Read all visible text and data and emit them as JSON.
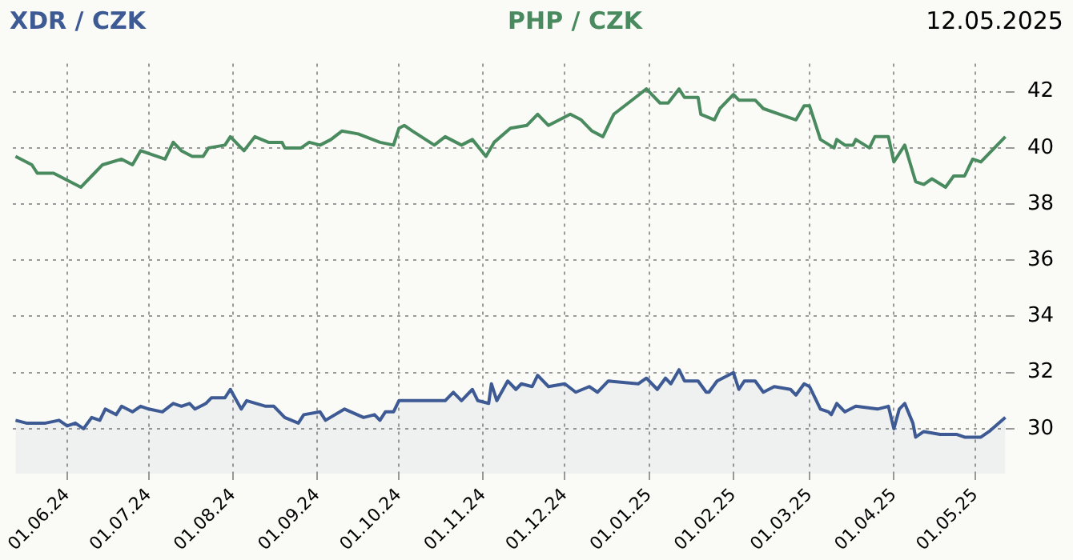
{
  "chart_data": {
    "type": "line",
    "annotations": [
      "12.05.2025"
    ],
    "xlim": [
      "2024-05-12",
      "2025-05-13"
    ],
    "xticks": [
      {
        "value": "2024-06-01",
        "label": "01.06.24"
      },
      {
        "value": "2024-07-01",
        "label": "01.07.24"
      },
      {
        "value": "2024-08-01",
        "label": "01.08.24"
      },
      {
        "value": "2024-09-01",
        "label": "01.09.24"
      },
      {
        "value": "2024-10-01",
        "label": "01.10.24"
      },
      {
        "value": "2024-11-01",
        "label": "01.11.24"
      },
      {
        "value": "2024-12-01",
        "label": "01.12.24"
      },
      {
        "value": "2025-01-01",
        "label": "01.01.25"
      },
      {
        "value": "2025-02-01",
        "label": "01.02.25"
      },
      {
        "value": "2025-03-01",
        "label": "01.03.25"
      },
      {
        "value": "2025-04-01",
        "label": "01.04.25"
      },
      {
        "value": "2025-05-01",
        "label": "01.05.25"
      }
    ],
    "ylim": [
      28.4,
      43
    ],
    "yticks": [
      30,
      32,
      34,
      36,
      38,
      40,
      42
    ],
    "grid": true,
    "marker": "none",
    "line_style": "solid",
    "series": [
      {
        "name": "XDR / CZK",
        "type": "area",
        "color": "#3d5a94",
        "x": [
          "2024-05-13",
          "2024-05-17",
          "2024-05-24",
          "2024-05-29",
          "2024-06-01",
          "2024-06-04",
          "2024-06-07",
          "2024-06-10",
          "2024-06-13",
          "2024-06-15",
          "2024-06-19",
          "2024-06-21",
          "2024-06-25",
          "2024-06-28",
          "2024-07-01",
          "2024-07-06",
          "2024-07-10",
          "2024-07-13",
          "2024-07-16",
          "2024-07-18",
          "2024-07-22",
          "2024-07-24",
          "2024-07-29",
          "2024-07-31",
          "2024-08-04",
          "2024-08-06",
          "2024-08-13",
          "2024-08-16",
          "2024-08-20",
          "2024-08-25",
          "2024-08-27",
          "2024-09-02",
          "2024-09-04",
          "2024-09-11",
          "2024-09-18",
          "2024-09-22",
          "2024-09-24",
          "2024-09-26",
          "2024-09-29",
          "2024-10-01",
          "2024-10-06",
          "2024-10-09",
          "2024-10-18",
          "2024-10-21",
          "2024-10-24",
          "2024-10-28",
          "2024-10-30",
          "2024-11-03",
          "2024-11-04",
          "2024-11-06",
          "2024-11-10",
          "2024-11-13",
          "2024-11-15",
          "2024-11-19",
          "2024-11-21",
          "2024-11-24",
          "2024-11-25",
          "2024-12-01",
          "2024-12-05",
          "2024-12-10",
          "2024-12-13",
          "2024-12-17",
          "2024-12-28",
          "2024-12-31",
          "2025-01-04",
          "2025-01-07",
          "2025-01-09",
          "2025-01-12",
          "2025-01-14",
          "2025-01-19",
          "2025-01-22",
          "2025-01-23",
          "2025-01-26",
          "2025-02-01",
          "2025-02-03",
          "2025-02-05",
          "2025-02-09",
          "2025-02-12",
          "2025-02-16",
          "2025-02-22",
          "2025-02-24",
          "2025-02-27",
          "2025-03-01",
          "2025-03-05",
          "2025-03-08",
          "2025-03-09",
          "2025-03-11",
          "2025-03-14",
          "2025-03-18",
          "2025-03-26",
          "2025-03-30",
          "2025-04-01",
          "2025-04-03",
          "2025-04-05",
          "2025-04-08",
          "2025-04-09",
          "2025-04-12",
          "2025-04-18",
          "2025-04-24",
          "2025-04-27",
          "2025-05-03",
          "2025-05-06",
          "2025-05-12"
        ],
        "values": [
          30.3,
          30.2,
          30.2,
          30.3,
          30.1,
          30.2,
          30.0,
          30.4,
          30.3,
          30.7,
          30.5,
          30.8,
          30.6,
          30.8,
          30.7,
          30.6,
          30.9,
          30.8,
          30.9,
          30.7,
          30.9,
          31.1,
          31.1,
          31.4,
          30.7,
          31.0,
          30.8,
          30.8,
          30.4,
          30.2,
          30.5,
          30.6,
          30.3,
          30.7,
          30.4,
          30.5,
          30.3,
          30.6,
          30.6,
          31.0,
          31.0,
          31.0,
          31.0,
          31.3,
          31.0,
          31.4,
          31.0,
          30.9,
          31.6,
          31.0,
          31.7,
          31.4,
          31.6,
          31.5,
          31.9,
          31.6,
          31.5,
          31.6,
          31.3,
          31.5,
          31.3,
          31.7,
          31.6,
          31.8,
          31.4,
          31.8,
          31.6,
          32.1,
          31.7,
          31.7,
          31.3,
          31.3,
          31.7,
          32.0,
          31.4,
          31.7,
          31.7,
          31.3,
          31.5,
          31.4,
          31.2,
          31.6,
          31.5,
          30.7,
          30.6,
          30.5,
          30.9,
          30.6,
          30.8,
          30.7,
          30.8,
          30.0,
          30.7,
          30.9,
          30.2,
          29.7,
          29.9,
          29.8,
          29.8,
          29.7,
          29.7,
          29.9,
          30.4
        ]
      },
      {
        "name": "PHP / CZK",
        "type": "line",
        "color": "#4a8a5f",
        "x": [
          "2024-05-13",
          "2024-05-19",
          "2024-05-21",
          "2024-05-27",
          "2024-06-02",
          "2024-06-06",
          "2024-06-11",
          "2024-06-14",
          "2024-06-21",
          "2024-06-25",
          "2024-06-28",
          "2024-07-07",
          "2024-07-10",
          "2024-07-13",
          "2024-07-17",
          "2024-07-21",
          "2024-07-23",
          "2024-07-29",
          "2024-07-31",
          "2024-08-05",
          "2024-08-09",
          "2024-08-14",
          "2024-08-19",
          "2024-08-20",
          "2024-08-26",
          "2024-08-29",
          "2024-09-02",
          "2024-09-06",
          "2024-09-10",
          "2024-09-16",
          "2024-09-24",
          "2024-09-29",
          "2024-10-01",
          "2024-10-03",
          "2024-10-06",
          "2024-10-14",
          "2024-10-18",
          "2024-10-24",
          "2024-10-28",
          "2024-11-02",
          "2024-11-05",
          "2024-11-11",
          "2024-11-17",
          "2024-11-21",
          "2024-11-24",
          "2024-11-25",
          "2024-12-03",
          "2024-12-07",
          "2024-12-11",
          "2024-12-15",
          "2024-12-19",
          "2024-12-27",
          "2024-12-31",
          "2025-01-05",
          "2025-01-08",
          "2025-01-12",
          "2025-01-14",
          "2025-01-19",
          "2025-01-20",
          "2025-01-25",
          "2025-01-27",
          "2025-02-01",
          "2025-02-03",
          "2025-02-09",
          "2025-02-12",
          "2025-02-18",
          "2025-02-24",
          "2025-02-27",
          "2025-03-01",
          "2025-03-05",
          "2025-03-10",
          "2025-03-11",
          "2025-03-14",
          "2025-03-17",
          "2025-03-18",
          "2025-03-23",
          "2025-03-25",
          "2025-03-30",
          "2025-04-01",
          "2025-04-05",
          "2025-04-09",
          "2025-04-12",
          "2025-04-15",
          "2025-04-20",
          "2025-04-23",
          "2025-04-27",
          "2025-04-30",
          "2025-05-03",
          "2025-05-06",
          "2025-05-12"
        ],
        "values": [
          39.7,
          39.4,
          39.1,
          39.1,
          38.8,
          38.6,
          39.1,
          39.4,
          39.6,
          39.4,
          39.9,
          39.6,
          40.2,
          39.9,
          39.7,
          39.7,
          40.0,
          40.1,
          40.4,
          39.9,
          40.4,
          40.2,
          40.2,
          40.0,
          40.0,
          40.2,
          40.1,
          40.3,
          40.6,
          40.5,
          40.2,
          40.1,
          40.7,
          40.8,
          40.6,
          40.1,
          40.4,
          40.1,
          40.3,
          39.7,
          40.2,
          40.7,
          40.8,
          41.2,
          40.9,
          40.8,
          41.2,
          41.0,
          40.6,
          40.4,
          41.2,
          41.8,
          42.1,
          41.6,
          41.6,
          42.1,
          41.8,
          41.8,
          41.2,
          41.0,
          41.4,
          41.9,
          41.7,
          41.7,
          41.4,
          41.2,
          41.0,
          41.5,
          41.5,
          40.3,
          40.0,
          40.3,
          40.1,
          40.1,
          40.3,
          40.0,
          40.4,
          40.4,
          39.5,
          40.1,
          38.8,
          38.7,
          38.9,
          38.6,
          39.0,
          39.0,
          39.6,
          39.5,
          39.8,
          40.4
        ]
      }
    ]
  }
}
